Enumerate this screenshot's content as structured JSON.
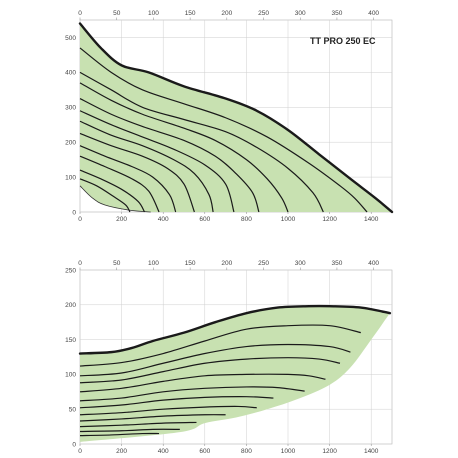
{
  "chart_data": [
    {
      "type": "area",
      "title": "TT PRO 250 EC",
      "xlim": [
        0,
        1500
      ],
      "ylim": [
        0,
        550
      ],
      "top_xlim": [
        0,
        425
      ],
      "x_ticks": [
        "0",
        "200",
        "400",
        "600",
        "800",
        "1000",
        "1200",
        "1400"
      ],
      "y_ticks": [
        "0",
        "100",
        "200",
        "300",
        "400",
        "500"
      ],
      "top_ticks": [
        "0",
        "50",
        "100",
        "150",
        "200",
        "250",
        "300",
        "350",
        "400"
      ],
      "grid": true,
      "fill_color": "#c8e1b1",
      "envelope": [
        [
          0,
          540
        ],
        [
          100,
          470
        ],
        [
          200,
          420
        ],
        [
          330,
          400
        ],
        [
          500,
          360
        ],
        [
          700,
          325
        ],
        [
          850,
          290
        ],
        [
          1000,
          235
        ],
        [
          1150,
          165
        ],
        [
          1300,
          95
        ],
        [
          1420,
          40
        ],
        [
          1500,
          0
        ]
      ],
      "lower_boundary": [
        [
          0,
          75
        ],
        [
          60,
          40
        ],
        [
          120,
          20
        ],
        [
          240,
          5
        ],
        [
          340,
          0
        ]
      ],
      "curves": [
        [
          [
            0,
            470
          ],
          [
            150,
            400
          ],
          [
            300,
            350
          ],
          [
            500,
            310
          ],
          [
            700,
            270
          ],
          [
            900,
            215
          ],
          [
            1100,
            140
          ],
          [
            1250,
            75
          ],
          [
            1320,
            40
          ],
          [
            1380,
            0
          ]
        ],
        [
          [
            0,
            400
          ],
          [
            150,
            350
          ],
          [
            300,
            300
          ],
          [
            500,
            265
          ],
          [
            700,
            230
          ],
          [
            850,
            185
          ],
          [
            1000,
            125
          ],
          [
            1120,
            55
          ],
          [
            1170,
            0
          ]
        ],
        [
          [
            0,
            370
          ],
          [
            150,
            320
          ],
          [
            300,
            280
          ],
          [
            500,
            240
          ],
          [
            650,
            205
          ],
          [
            800,
            150
          ],
          [
            900,
            95
          ],
          [
            970,
            40
          ],
          [
            1000,
            0
          ]
        ],
        [
          [
            0,
            325
          ],
          [
            150,
            280
          ],
          [
            300,
            245
          ],
          [
            500,
            205
          ],
          [
            650,
            160
          ],
          [
            750,
            110
          ],
          [
            830,
            55
          ],
          [
            860,
            0
          ]
        ],
        [
          [
            0,
            290
          ],
          [
            150,
            250
          ],
          [
            300,
            215
          ],
          [
            450,
            180
          ],
          [
            600,
            135
          ],
          [
            700,
            80
          ],
          [
            740,
            0
          ]
        ],
        [
          [
            0,
            260
          ],
          [
            150,
            220
          ],
          [
            300,
            190
          ],
          [
            450,
            150
          ],
          [
            550,
            110
          ],
          [
            620,
            50
          ],
          [
            640,
            0
          ]
        ],
        [
          [
            0,
            225
          ],
          [
            150,
            190
          ],
          [
            300,
            160
          ],
          [
            420,
            125
          ],
          [
            500,
            80
          ],
          [
            550,
            0
          ]
        ],
        [
          [
            0,
            190
          ],
          [
            120,
            160
          ],
          [
            250,
            130
          ],
          [
            350,
            100
          ],
          [
            430,
            50
          ],
          [
            460,
            0
          ]
        ],
        [
          [
            0,
            160
          ],
          [
            120,
            130
          ],
          [
            250,
            95
          ],
          [
            330,
            60
          ],
          [
            380,
            0
          ]
        ],
        [
          [
            0,
            120
          ],
          [
            100,
            95
          ],
          [
            200,
            65
          ],
          [
            280,
            30
          ],
          [
            310,
            0
          ]
        ],
        [
          [
            0,
            95
          ],
          [
            80,
            75
          ],
          [
            160,
            45
          ],
          [
            220,
            20
          ],
          [
            240,
            0
          ]
        ]
      ]
    },
    {
      "type": "area",
      "xlim": [
        0,
        1500
      ],
      "ylim": [
        0,
        250
      ],
      "top_xlim": [
        0,
        425
      ],
      "x_ticks": [
        "0",
        "200",
        "400",
        "600",
        "800",
        "1000",
        "1200",
        "1400"
      ],
      "y_ticks": [
        "0",
        "50",
        "100",
        "150",
        "200",
        "250"
      ],
      "top_ticks": [
        "0",
        "50",
        "100",
        "150",
        "200",
        "250",
        "300",
        "350",
        "400"
      ],
      "grid": true,
      "fill_color": "#c8e1b1",
      "envelope": [
        [
          0,
          130
        ],
        [
          150,
          132
        ],
        [
          250,
          138
        ],
        [
          350,
          148
        ],
        [
          500,
          160
        ],
        [
          650,
          175
        ],
        [
          800,
          188
        ],
        [
          950,
          196
        ],
        [
          1100,
          198
        ],
        [
          1200,
          198
        ],
        [
          1350,
          196
        ],
        [
          1490,
          188
        ]
      ],
      "lower_boundary": [
        [
          1490,
          188
        ],
        [
          1400,
          150
        ],
        [
          1300,
          110
        ],
        [
          1200,
          85
        ],
        [
          1050,
          65
        ],
        [
          900,
          50
        ],
        [
          750,
          38
        ],
        [
          600,
          30
        ],
        [
          480,
          17
        ],
        [
          0,
          3
        ]
      ],
      "curves": [
        [
          [
            0,
            112
          ],
          [
            200,
            117
          ],
          [
            400,
            130
          ],
          [
            600,
            148
          ],
          [
            800,
            165
          ],
          [
            1000,
            170
          ],
          [
            1200,
            170
          ],
          [
            1350,
            160
          ]
        ],
        [
          [
            0,
            98
          ],
          [
            200,
            102
          ],
          [
            400,
            116
          ],
          [
            600,
            130
          ],
          [
            800,
            140
          ],
          [
            1000,
            143
          ],
          [
            1200,
            140
          ],
          [
            1300,
            132
          ]
        ],
        [
          [
            0,
            88
          ],
          [
            200,
            92
          ],
          [
            400,
            104
          ],
          [
            600,
            116
          ],
          [
            800,
            122
          ],
          [
            1000,
            124
          ],
          [
            1150,
            122
          ],
          [
            1250,
            116
          ]
        ],
        [
          [
            0,
            75
          ],
          [
            200,
            80
          ],
          [
            400,
            90
          ],
          [
            600,
            98
          ],
          [
            800,
            100
          ],
          [
            1000,
            100
          ],
          [
            1100,
            98
          ],
          [
            1180,
            93
          ]
        ],
        [
          [
            0,
            62
          ],
          [
            200,
            66
          ],
          [
            400,
            75
          ],
          [
            600,
            80
          ],
          [
            800,
            82
          ],
          [
            950,
            81
          ],
          [
            1080,
            76
          ]
        ],
        [
          [
            0,
            52
          ],
          [
            200,
            56
          ],
          [
            400,
            63
          ],
          [
            600,
            67
          ],
          [
            800,
            68
          ],
          [
            930,
            66
          ]
        ],
        [
          [
            0,
            42
          ],
          [
            200,
            45
          ],
          [
            400,
            50
          ],
          [
            600,
            53
          ],
          [
            760,
            54
          ],
          [
            850,
            52
          ]
        ],
        [
          [
            0,
            33
          ],
          [
            200,
            36
          ],
          [
            400,
            40
          ],
          [
            600,
            42
          ],
          [
            700,
            42
          ]
        ],
        [
          [
            0,
            25
          ],
          [
            200,
            27
          ],
          [
            400,
            30
          ],
          [
            560,
            31
          ]
        ],
        [
          [
            0,
            18
          ],
          [
            200,
            19
          ],
          [
            350,
            21
          ],
          [
            480,
            21
          ]
        ],
        [
          [
            0,
            12
          ],
          [
            150,
            13
          ],
          [
            300,
            15
          ],
          [
            380,
            15
          ]
        ]
      ]
    }
  ]
}
